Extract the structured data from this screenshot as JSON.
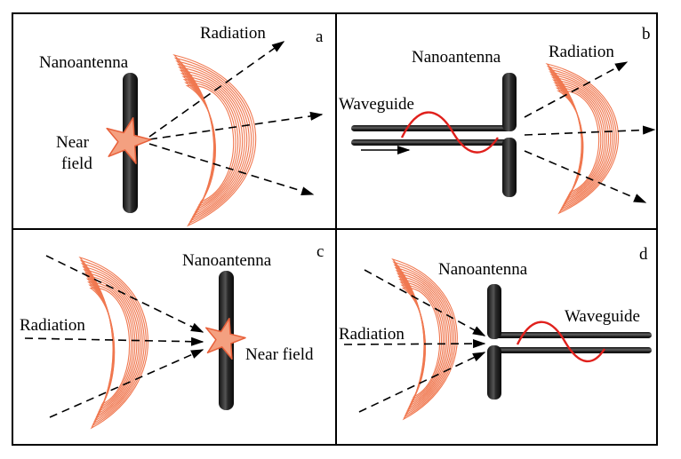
{
  "panels": {
    "a": {
      "letter": "a",
      "nanoantenna": "Nanoantenna",
      "radiation": "Radiation",
      "near_field_line1": "Near",
      "near_field_line2": "field"
    },
    "b": {
      "letter": "b",
      "nanoantenna": "Nanoantenna",
      "radiation": "Radiation",
      "waveguide": "Waveguide"
    },
    "c": {
      "letter": "c",
      "nanoantenna": "Nanoantenna",
      "radiation": "Radiation",
      "near_field": "Near field"
    },
    "d": {
      "letter": "d",
      "nanoantenna": "Nanoantenna",
      "radiation": "Radiation",
      "waveguide": "Waveguide"
    }
  },
  "colors": {
    "wavefront": "#f07850",
    "star_fill": "#f4a080",
    "star_stroke": "#e8603a",
    "wave": "#e0201c",
    "antenna_dark": "#1a1a1a"
  }
}
